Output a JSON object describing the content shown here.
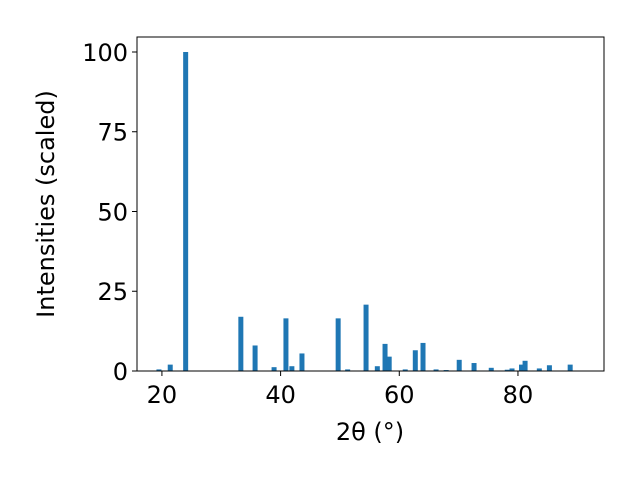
{
  "chart_data": {
    "type": "bar",
    "x": [
      19.5,
      21.4,
      24.0,
      33.3,
      35.7,
      38.9,
      40.9,
      41.9,
      43.6,
      49.7,
      51.3,
      54.4,
      56.3,
      57.6,
      58.3,
      61.0,
      62.7,
      64.0,
      66.2,
      67.9,
      70.1,
      72.6,
      75.5,
      78.2,
      79.0,
      80.6,
      81.2,
      83.6,
      85.3,
      88.8
    ],
    "values": [
      0.5,
      2,
      100,
      17,
      8,
      1.2,
      16.5,
      1.5,
      5.5,
      16.5,
      0.5,
      20.8,
      1.5,
      8.5,
      4.5,
      0.5,
      6.5,
      8.8,
      0.5,
      0.3,
      3.5,
      2.5,
      1,
      0.4,
      0.8,
      2,
      3.2,
      0.8,
      1.8,
      2
    ],
    "color": "#1f77b4",
    "xlabel": "2θ (°)",
    "ylabel": "Intensities (scaled)",
    "xlim": [
      15.8,
      94.5
    ],
    "ylim": [
      0,
      104.7
    ],
    "xticks": [
      20,
      40,
      60,
      80
    ],
    "yticks": [
      0,
      25,
      50,
      75,
      100
    ]
  }
}
